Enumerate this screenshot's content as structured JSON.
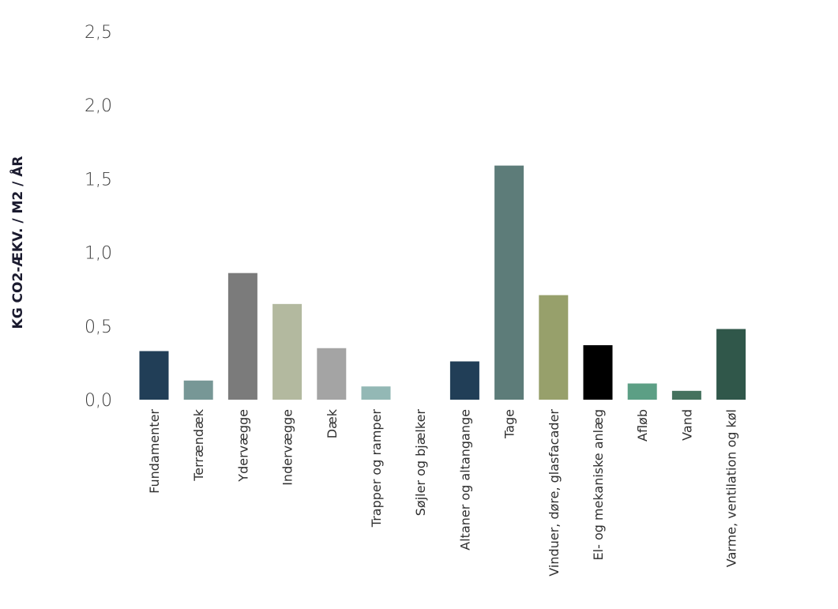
{
  "chart_data": {
    "type": "bar",
    "title": "",
    "xlabel": "",
    "ylabel": "KG CO2-ÆKV. / M2 / ÅR",
    "ylim": [
      0,
      2.5
    ],
    "yticks": [
      "0,0",
      "0,5",
      "1,0",
      "1,5",
      "2,0",
      "2,5"
    ],
    "grid": false,
    "categories": [
      "Fundamenter",
      "Terrændæk",
      "Ydervægge",
      "Indervægge",
      "Dæk",
      "Trapper og ramper",
      "Søjler og bjælker",
      "Altaner og altangange",
      "Tage",
      "Vinduer, døre, glasfacader",
      "El- og mekaniske anlæg",
      "Afløb",
      "Vand",
      "Varme, ventilation og køl"
    ],
    "values": [
      0.33,
      0.13,
      0.86,
      0.65,
      0.35,
      0.09,
      0.0,
      0.26,
      1.59,
      0.71,
      0.37,
      0.11,
      0.06,
      0.48
    ],
    "colors": [
      "#213e57",
      "#779796",
      "#7b7b7b",
      "#b3b99f",
      "#a4a4a4",
      "#93b8b5",
      "#ffffff",
      "#213e57",
      "#5d7c79",
      "#97a06b",
      "#000000",
      "#5c9f85",
      "#45725e",
      "#30574a"
    ]
  }
}
